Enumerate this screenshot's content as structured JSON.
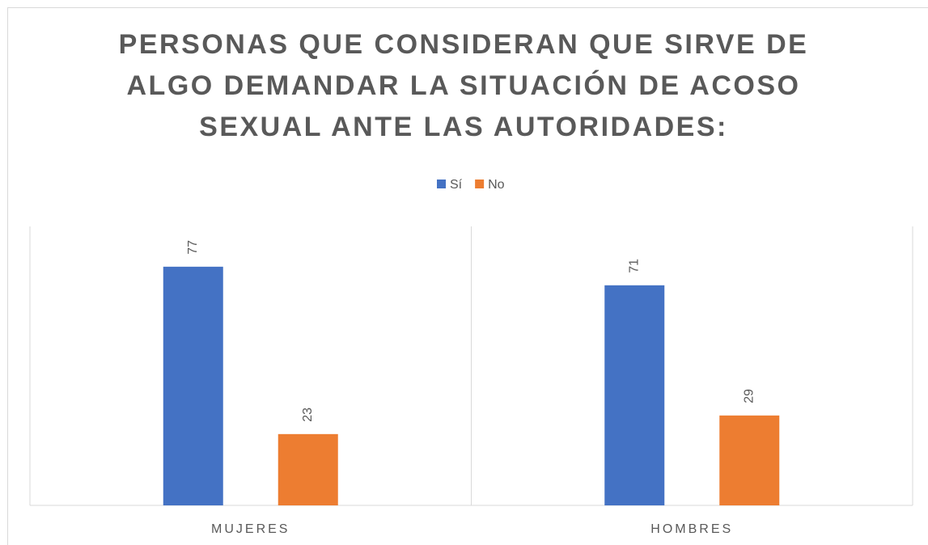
{
  "chart_data": {
    "type": "bar",
    "title": "PERSONAS QUE CONSIDERAN QUE SIRVE DE ALGO DEMANDAR LA SITUACIÓN DE ACOSO SEXUAL ANTE LAS AUTORIDADES:",
    "categories": [
      "MUJERES",
      "HOMBRES"
    ],
    "series": [
      {
        "name": "Sí",
        "color": "#4472c4",
        "values": [
          77,
          71
        ]
      },
      {
        "name": "No",
        "color": "#ed7d31",
        "values": [
          23,
          29
        ]
      }
    ],
    "ylim": [
      0,
      90
    ],
    "legend": "top"
  }
}
